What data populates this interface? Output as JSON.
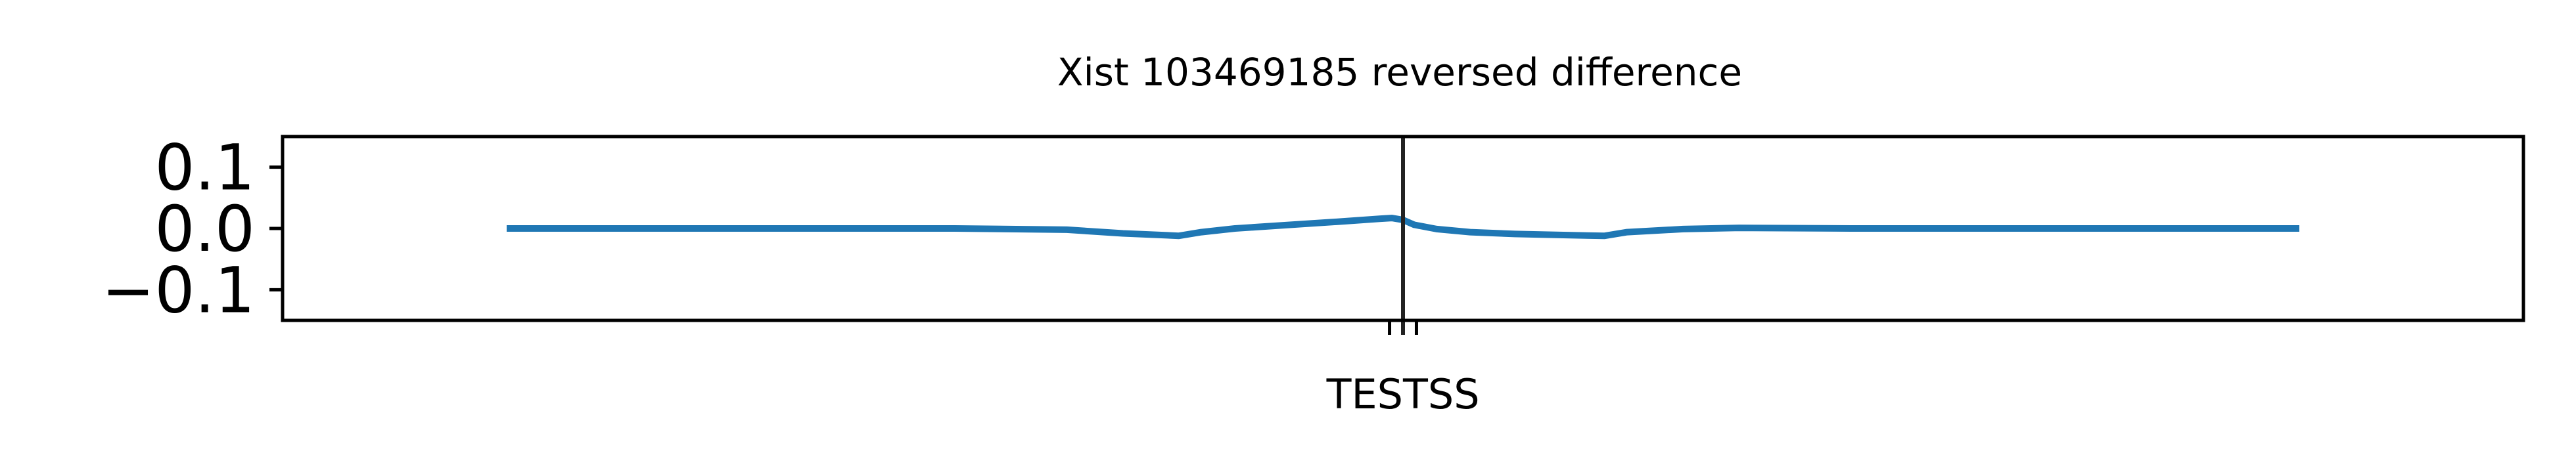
{
  "chart_data": {
    "type": "line",
    "title": "Xist 103469185 reversed difference",
    "xlabel": "",
    "ylabel": "",
    "xlim": [
      -1.0,
      1.0
    ],
    "ylim": [
      -0.15,
      0.15
    ],
    "yticks": [
      0.1,
      0.0,
      -0.1
    ],
    "ytick_labels": [
      "0.1",
      "0.0",
      "−0.1"
    ],
    "xtick_labels": [
      {
        "label": "TES",
        "x": -0.012
      },
      {
        "label": "TSS",
        "x": 0.012
      }
    ],
    "marker_line": {
      "x": 0.0,
      "color": "#222222"
    },
    "grid": false,
    "series": [
      {
        "color": "#1f77b4",
        "x": [
          -0.8,
          -0.6,
          -0.4,
          -0.3,
          -0.25,
          -0.2,
          -0.18,
          -0.15,
          -0.1,
          -0.05,
          -0.02,
          -0.01,
          0.0,
          0.01,
          0.03,
          0.06,
          0.1,
          0.15,
          0.18,
          0.2,
          0.25,
          0.3,
          0.4,
          0.5,
          0.6,
          0.8
        ],
        "y": [
          0.0,
          0.0,
          0.0,
          -0.002,
          -0.008,
          -0.012,
          -0.006,
          0.0,
          0.006,
          0.012,
          0.016,
          0.017,
          0.014,
          0.006,
          -0.001,
          -0.006,
          -0.009,
          -0.011,
          -0.012,
          -0.006,
          -0.001,
          0.001,
          0.0,
          0.0,
          0.0,
          0.0
        ]
      }
    ]
  }
}
